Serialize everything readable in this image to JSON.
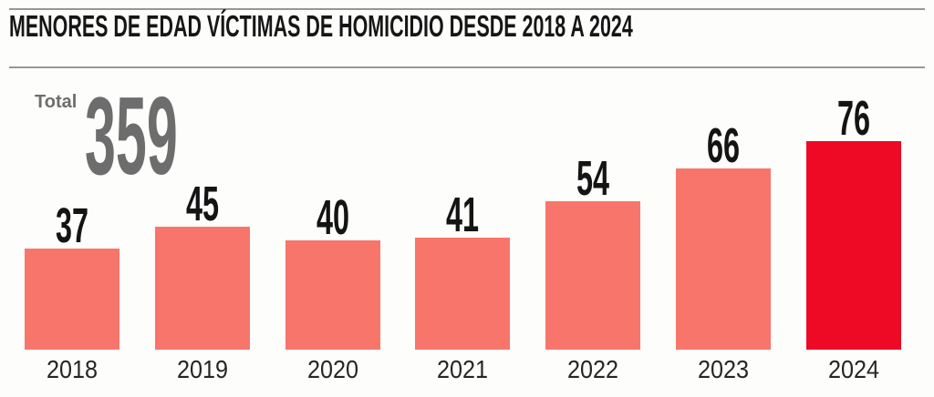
{
  "header": {
    "title": "MENORES DE EDAD VÍCTIMAS DE HOMICIDIO DESDE 2018 A 2024"
  },
  "total": {
    "label": "Total",
    "value": "359"
  },
  "chart_data": {
    "type": "bar",
    "title": "MENORES DE EDAD VÍCTIMAS DE HOMICIDIO DESDE 2018 A 2024",
    "categories": [
      "2018",
      "2019",
      "2020",
      "2021",
      "2022",
      "2023",
      "2024"
    ],
    "values": [
      37,
      45,
      40,
      41,
      54,
      66,
      76
    ],
    "total": 359,
    "highlight_category": "2024",
    "bar_color": "#f8756c",
    "highlight_color": "#ee0a24",
    "value_label_color": "#141414",
    "axis_label_color": "#262626",
    "total_color": "#6d6d6d",
    "divider_color": "#979797",
    "xlabel": "",
    "ylabel": "",
    "ylim": [
      0,
      80
    ],
    "grid": false,
    "legend": "none",
    "value_labels_shown": true
  }
}
